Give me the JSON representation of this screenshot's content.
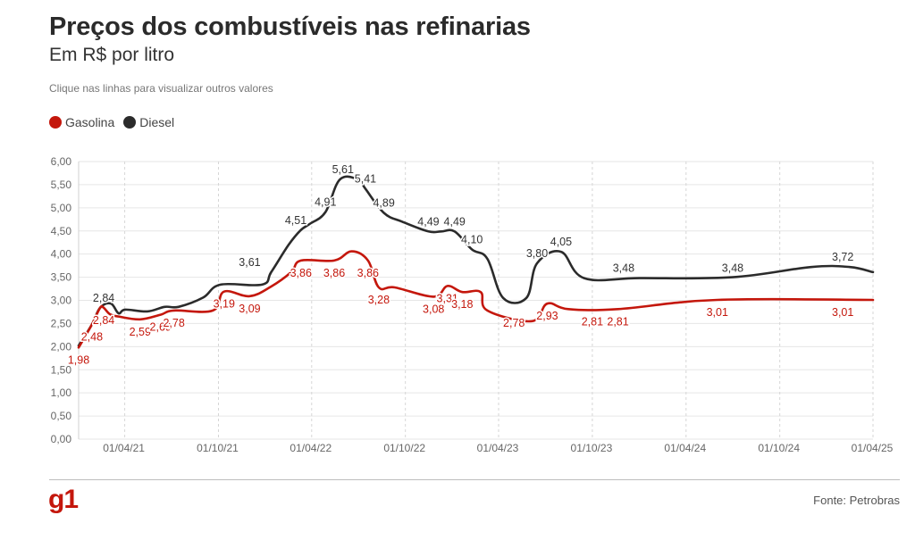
{
  "header": {
    "title": "Preços dos combustíveis nas refinarias",
    "subtitle": "Em R$ por litro",
    "hint": "Clique nas linhas para visualizar outros valores"
  },
  "legend": [
    {
      "label": "Gasolina",
      "color": "#c4170c"
    },
    {
      "label": "Diesel",
      "color": "#2b2b2b"
    }
  ],
  "footer": {
    "logo": "g1",
    "source": "Fonte: Petrobras"
  },
  "chart_data": {
    "type": "line",
    "ylim": [
      0,
      6
    ],
    "yticks": [
      "0,00",
      "0,50",
      "1,00",
      "1,50",
      "2,00",
      "2,50",
      "3,00",
      "3,50",
      "4,00",
      "4,50",
      "5,00",
      "5,50",
      "6,00"
    ],
    "xlim": [
      "2021-01-01",
      "2025-04-01"
    ],
    "xticks": [
      {
        "date": "2021-04-01",
        "label": "01/04/21"
      },
      {
        "date": "2021-10-01",
        "label": "01/10/21"
      },
      {
        "date": "2022-04-01",
        "label": "01/04/22"
      },
      {
        "date": "2022-10-01",
        "label": "01/10/22"
      },
      {
        "date": "2023-04-01",
        "label": "01/04/23"
      },
      {
        "date": "2023-10-01",
        "label": "01/10/23"
      },
      {
        "date": "2024-04-01",
        "label": "01/04/24"
      },
      {
        "date": "2024-10-01",
        "label": "01/10/24"
      },
      {
        "date": "2025-04-01",
        "label": "01/04/25"
      }
    ],
    "grid": true,
    "legend_position": "top-left",
    "series": [
      {
        "name": "Gasolina",
        "color": "#c4170c",
        "points": [
          [
            "2021-01-01",
            1.98
          ],
          [
            "2021-01-27",
            2.48
          ],
          [
            "2021-02-12",
            2.84
          ],
          [
            "2021-02-19",
            2.84
          ],
          [
            "2021-03-03",
            2.7
          ],
          [
            "2021-03-20",
            2.65
          ],
          [
            "2021-05-01",
            2.59
          ],
          [
            "2021-06-10",
            2.69
          ],
          [
            "2021-07-06",
            2.78
          ],
          [
            "2021-09-20",
            2.78
          ],
          [
            "2021-10-12",
            3.19
          ],
          [
            "2021-12-01",
            3.09
          ],
          [
            "2022-01-12",
            3.3
          ],
          [
            "2022-02-20",
            3.61
          ],
          [
            "2022-03-11",
            3.86
          ],
          [
            "2022-05-15",
            3.86
          ],
          [
            "2022-06-18",
            4.06
          ],
          [
            "2022-07-20",
            3.86
          ],
          [
            "2022-08-10",
            3.28
          ],
          [
            "2022-09-10",
            3.28
          ],
          [
            "2022-11-25",
            3.08
          ],
          [
            "2022-12-22",
            3.31
          ],
          [
            "2023-01-20",
            3.18
          ],
          [
            "2023-02-25",
            3.18
          ],
          [
            "2023-03-10",
            2.78
          ],
          [
            "2023-06-05",
            2.55
          ],
          [
            "2023-07-05",
            2.93
          ],
          [
            "2023-08-15",
            2.81
          ],
          [
            "2023-11-20",
            2.81
          ],
          [
            "2024-06-01",
            3.01
          ],
          [
            "2025-04-01",
            3.01
          ]
        ],
        "labels": [
          [
            "2021-01-01",
            1.98
          ],
          [
            "2021-01-27",
            2.48
          ],
          [
            "2021-02-19",
            2.84
          ],
          [
            "2021-05-01",
            2.59
          ],
          [
            "2021-06-10",
            2.69
          ],
          [
            "2021-07-06",
            2.78
          ],
          [
            "2021-10-12",
            3.19
          ],
          [
            "2021-12-01",
            3.09
          ],
          [
            "2022-03-11",
            3.86
          ],
          [
            "2022-05-15",
            3.86
          ],
          [
            "2022-07-20",
            3.86
          ],
          [
            "2022-08-10",
            3.28
          ],
          [
            "2022-11-25",
            3.08
          ],
          [
            "2022-12-22",
            3.31
          ],
          [
            "2023-01-20",
            3.18
          ],
          [
            "2023-05-01",
            2.78
          ],
          [
            "2023-07-05",
            2.93
          ],
          [
            "2023-10-01",
            2.81
          ],
          [
            "2023-11-20",
            2.81
          ],
          [
            "2024-06-01",
            3.01
          ],
          [
            "2025-02-01",
            3.01
          ]
        ]
      },
      {
        "name": "Diesel",
        "color": "#2b2b2b",
        "points": [
          [
            "2021-01-01",
            2.02
          ],
          [
            "2021-01-27",
            2.48
          ],
          [
            "2021-02-12",
            2.84
          ],
          [
            "2021-03-05",
            2.93
          ],
          [
            "2021-03-20",
            2.72
          ],
          [
            "2021-04-02",
            2.8
          ],
          [
            "2021-05-15",
            2.76
          ],
          [
            "2021-06-18",
            2.86
          ],
          [
            "2021-07-15",
            2.86
          ],
          [
            "2021-09-01",
            3.06
          ],
          [
            "2021-10-05",
            3.34
          ],
          [
            "2021-12-25",
            3.34
          ],
          [
            "2022-01-12",
            3.61
          ],
          [
            "2022-02-15",
            4.2
          ],
          [
            "2022-03-10",
            4.51
          ],
          [
            "2022-03-28",
            4.65
          ],
          [
            "2022-04-28",
            4.91
          ],
          [
            "2022-05-26",
            5.61
          ],
          [
            "2022-07-01",
            5.61
          ],
          [
            "2022-07-15",
            5.41
          ],
          [
            "2022-08-20",
            4.89
          ],
          [
            "2022-09-25",
            4.7
          ],
          [
            "2022-11-15",
            4.49
          ],
          [
            "2022-12-10",
            4.49
          ],
          [
            "2023-01-05",
            4.49
          ],
          [
            "2023-02-08",
            4.1
          ],
          [
            "2023-03-10",
            3.9
          ],
          [
            "2023-04-10",
            3.05
          ],
          [
            "2023-05-25",
            3.05
          ],
          [
            "2023-06-15",
            3.8
          ],
          [
            "2023-08-01",
            4.05
          ],
          [
            "2023-09-15",
            3.48
          ],
          [
            "2024-01-01",
            3.48
          ],
          [
            "2024-07-01",
            3.5
          ],
          [
            "2024-12-01",
            3.72
          ],
          [
            "2025-02-15",
            3.72
          ],
          [
            "2025-04-01",
            3.61
          ]
        ],
        "labels": [
          [
            "2021-02-19",
            2.84
          ],
          [
            "2021-12-01",
            3.61
          ],
          [
            "2022-03-01",
            4.51
          ],
          [
            "2022-04-28",
            4.91
          ],
          [
            "2022-06-01",
            5.61
          ],
          [
            "2022-07-15",
            5.41
          ],
          [
            "2022-08-20",
            4.89
          ],
          [
            "2022-11-15",
            4.49
          ],
          [
            "2023-01-05",
            4.49
          ],
          [
            "2023-02-08",
            4.1
          ],
          [
            "2023-06-15",
            3.8
          ],
          [
            "2023-08-01",
            4.05
          ],
          [
            "2023-12-01",
            3.48
          ],
          [
            "2024-07-01",
            3.48
          ],
          [
            "2025-02-01",
            3.72
          ]
        ]
      }
    ]
  }
}
